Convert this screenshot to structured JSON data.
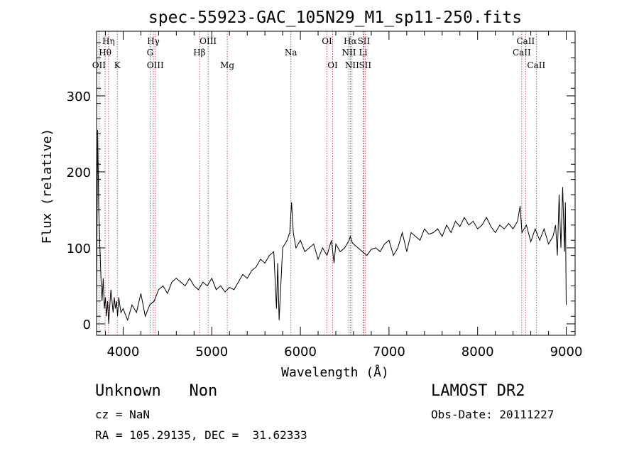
{
  "chart_data": {
    "type": "line",
    "title": "spec-55923-GAC_105N29_M1_sp11-250.fits",
    "xlabel": "Wavelength (Å)",
    "ylabel": "Flux (relative)",
    "xlim": [
      3700,
      9100
    ],
    "ylim": [
      -15,
      385
    ],
    "x_ticks": [
      4000,
      5000,
      6000,
      7000,
      8000,
      9000
    ],
    "y_ticks": [
      0,
      100,
      200,
      300
    ],
    "grid": false,
    "series": [
      {
        "x": [
          3700,
          3712,
          3725,
          3737,
          3750,
          3762,
          3775,
          3787,
          3800,
          3812,
          3825,
          3837,
          3850,
          3862,
          3875,
          3887,
          3900,
          3912,
          3925,
          3937,
          3950,
          3975,
          4000,
          4050,
          4100,
          4150,
          4200,
          4250,
          4300,
          4350,
          4400,
          4450,
          4500,
          4550,
          4600,
          4650,
          4700,
          4750,
          4800,
          4850,
          4900,
          4950,
          5000,
          5050,
          5100,
          5150,
          5200,
          5250,
          5300,
          5350,
          5400,
          5450,
          5500,
          5550,
          5600,
          5650,
          5700,
          5730,
          5745,
          5760,
          5800,
          5850,
          5880,
          5900,
          5920,
          5950,
          6000,
          6050,
          6100,
          6150,
          6200,
          6250,
          6300,
          6350,
          6380,
          6400,
          6450,
          6500,
          6550,
          6563,
          6580,
          6600,
          6650,
          6700,
          6750,
          6800,
          6850,
          6900,
          6950,
          7000,
          7050,
          7100,
          7150,
          7200,
          7250,
          7300,
          7350,
          7400,
          7450,
          7500,
          7550,
          7600,
          7650,
          7700,
          7750,
          7800,
          7850,
          7900,
          7950,
          8000,
          8050,
          8100,
          8150,
          8200,
          8250,
          8300,
          8350,
          8400,
          8450,
          8480,
          8500,
          8550,
          8600,
          8650,
          8700,
          8750,
          8800,
          8850,
          8880,
          8900,
          8920,
          8940,
          8960,
          8980,
          8990,
          9000
        ],
        "values": [
          30,
          255,
          150,
          105,
          60,
          30,
          60,
          20,
          35,
          10,
          30,
          0,
          25,
          45,
          30,
          15,
          35,
          20,
          30,
          10,
          35,
          15,
          20,
          5,
          25,
          15,
          40,
          10,
          25,
          30,
          45,
          50,
          40,
          55,
          60,
          55,
          50,
          60,
          50,
          45,
          55,
          50,
          60,
          45,
          50,
          42,
          48,
          45,
          55,
          65,
          60,
          70,
          75,
          85,
          80,
          90,
          95,
          20,
          80,
          5,
          100,
          110,
          120,
          160,
          120,
          100,
          110,
          95,
          100,
          105,
          85,
          100,
          90,
          110,
          80,
          105,
          95,
          100,
          110,
          115,
          108,
          105,
          100,
          95,
          90,
          98,
          100,
          95,
          105,
          110,
          90,
          100,
          120,
          95,
          120,
          115,
          110,
          125,
          118,
          120,
          125,
          115,
          130,
          120,
          135,
          128,
          140,
          130,
          135,
          125,
          130,
          140,
          128,
          120,
          130,
          125,
          132,
          125,
          135,
          155,
          120,
          130,
          108,
          125,
          110,
          125,
          105,
          115,
          130,
          90,
          170,
          100,
          180,
          95,
          160,
          25
        ]
      }
    ]
  },
  "lines": [
    {
      "label": "Hη",
      "wl": 3835,
      "row": 1
    },
    {
      "label": "Hθ",
      "wl": 3797,
      "row": 2
    },
    {
      "label": "OII",
      "wl": 3727,
      "row": 3
    },
    {
      "label": "K",
      "wl": 3934,
      "row": 3
    },
    {
      "label": "Hγ",
      "wl": 4341,
      "row": 1
    },
    {
      "label": "G",
      "wl": 4304,
      "row": 2
    },
    {
      "label": "OIII",
      "wl": 4363,
      "row": 3
    },
    {
      "label": "OIII",
      "wl": 4959,
      "row": 1
    },
    {
      "label": "Hβ",
      "wl": 4861,
      "row": 2
    },
    {
      "label": "Mg",
      "wl": 5175,
      "row": 3
    },
    {
      "label": "Na",
      "wl": 5893,
      "row": 2
    },
    {
      "label": "OI",
      "wl": 6300,
      "row": 1
    },
    {
      "label": "OI",
      "wl": 6364,
      "row": 3
    },
    {
      "label": "Hα",
      "wl": 6563,
      "row": 1
    },
    {
      "label": "SII",
      "wl": 6716,
      "row": 1
    },
    {
      "label": "NII",
      "wl": 6548,
      "row": 2
    },
    {
      "label": "Li",
      "wl": 6708,
      "row": 2
    },
    {
      "label": "NII",
      "wl": 6583,
      "row": 3
    },
    {
      "label": "SII",
      "wl": 6731,
      "row": 3
    },
    {
      "label": "CaII",
      "wl": 8542,
      "row": 1
    },
    {
      "label": "CaII",
      "wl": 8498,
      "row": 2
    },
    {
      "label": "CaII",
      "wl": 8662,
      "row": 3
    }
  ],
  "info": {
    "object_class": "Unknown   Non",
    "survey": "LAMOST DR2",
    "cz": "cz = NaN",
    "obs_date": "Obs-Date: 20111227",
    "radec": "RA = 105.29135, DEC =  31.62333"
  }
}
